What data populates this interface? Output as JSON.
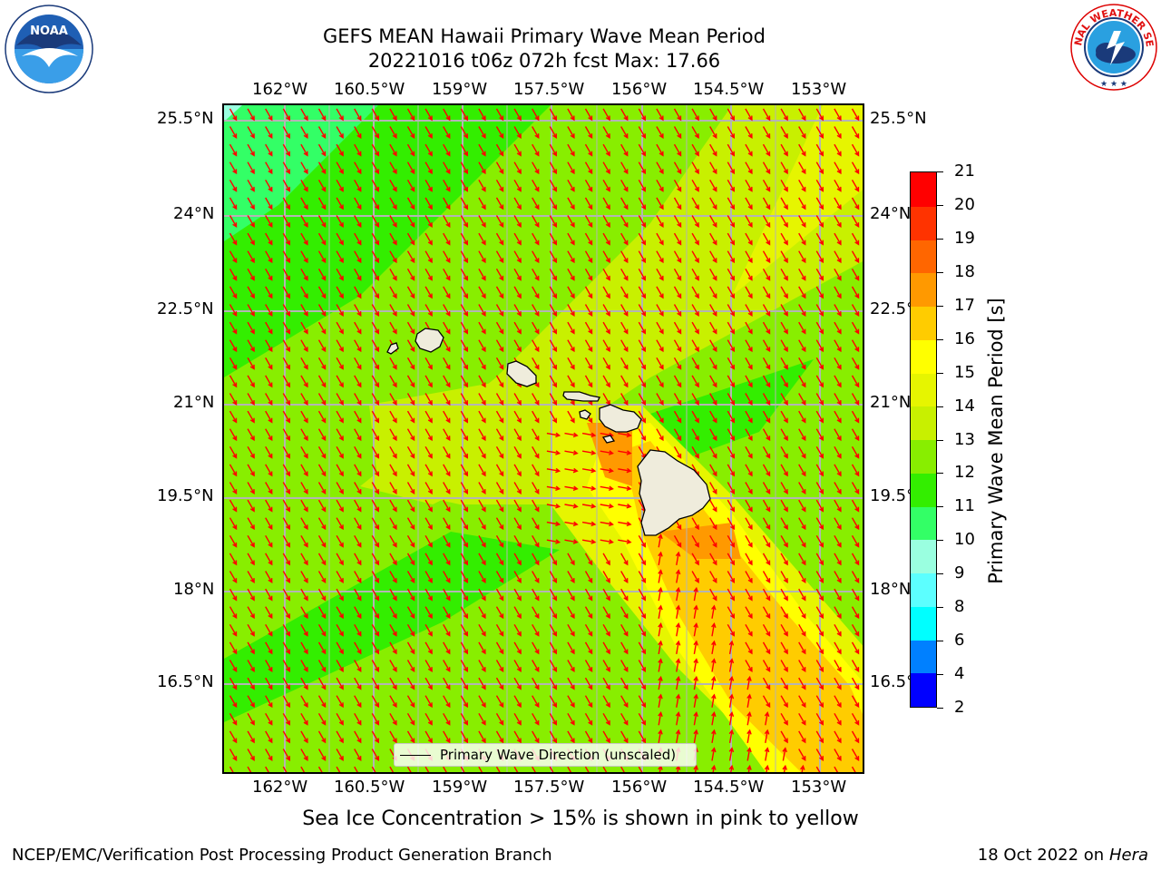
{
  "title": {
    "line1": "GEFS MEAN Hawaii Primary Wave Mean Period",
    "line2": "20221016 t06z 072h fcst   Max: 17.66"
  },
  "logos": {
    "noaa": {
      "text": "NOAA",
      "ring_text": "NATIONAL OCEANIC AND ATMOSPHERIC ADMINISTRATION · U.S. DEPARTMENT OF COMMERCE"
    },
    "nws": {
      "ring_text": "NATIONAL WEATHER SERVICE"
    }
  },
  "map": {
    "lon_ticks": [
      "162°W",
      "160.5°W",
      "159°W",
      "157.5°W",
      "156°W",
      "154.5°W",
      "153°W"
    ],
    "lat_ticks": [
      "25.5°N",
      "24°N",
      "22.5°N",
      "21°N",
      "19.5°N",
      "18°N",
      "16.5°N"
    ],
    "legend_label": "Primary Wave Direction (unscaled)",
    "colors": {
      "grid": "#b4b4b4",
      "arrow": "#ff0000",
      "land": "#efecdc",
      "coast": "#000000"
    }
  },
  "colorbar": {
    "label": "Primary Wave Mean Period [s]",
    "ticks": [
      "2",
      "4",
      "6",
      "8",
      "9",
      "10",
      "11",
      "12",
      "13",
      "14",
      "15",
      "16",
      "17",
      "18",
      "19",
      "20",
      "21"
    ],
    "colors": [
      "#0000ff",
      "#0080ff",
      "#00ffff",
      "#5cffff",
      "#9affe0",
      "#33ff66",
      "#33ee00",
      "#88ee00",
      "#c8f000",
      "#e6f500",
      "#ffff00",
      "#ffcc00",
      "#ff9900",
      "#ff6600",
      "#ff3300",
      "#ff0000"
    ]
  },
  "subtitle": "Sea Ice Concentration > 15% is shown in pink to yellow",
  "footer": {
    "left": "NCEP/EMC/Verification Post Processing Product Generation Branch",
    "right_date": "18 Oct 2022 on ",
    "right_host": "Hera"
  }
}
